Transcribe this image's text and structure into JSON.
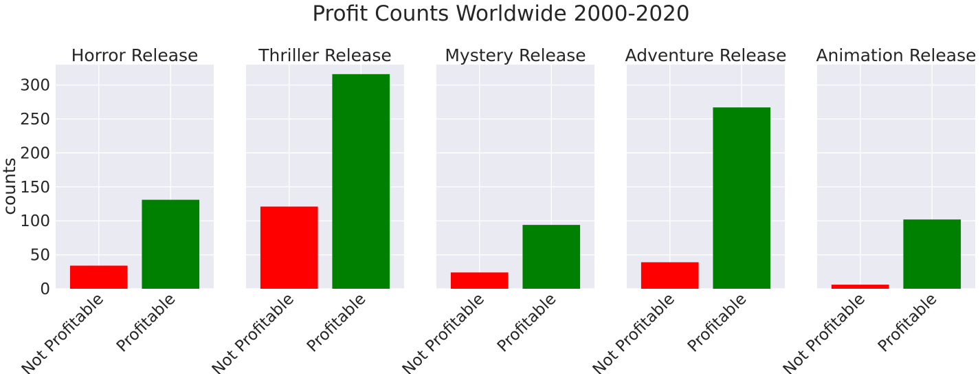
{
  "figure": {
    "suptitle": "Profit Counts Worldwide 2000-2020",
    "ylabel": "counts"
  },
  "colors": {
    "panel_bg": "#eaeaf2",
    "grid": "#ffffff",
    "text": "#262626",
    "not_profitable": "#ff0000",
    "profitable": "#008000"
  },
  "chart_data": [
    {
      "type": "bar",
      "title": "Horror Release",
      "categories": [
        "Not Profitable",
        "Profitable"
      ],
      "values": [
        34,
        131
      ],
      "ylabel": "counts",
      "ylim": [
        0,
        330
      ],
      "yticks": [
        0,
        50,
        100,
        150,
        200,
        250,
        300
      ],
      "grid": true
    },
    {
      "type": "bar",
      "title": "Thriller Release",
      "categories": [
        "Not Profitable",
        "Profitable"
      ],
      "values": [
        121,
        316
      ],
      "ylim": [
        0,
        330
      ],
      "yticks": [
        0,
        50,
        100,
        150,
        200,
        250,
        300
      ],
      "grid": true
    },
    {
      "type": "bar",
      "title": "Mystery Release",
      "categories": [
        "Not Profitable",
        "Profitable"
      ],
      "values": [
        24,
        94
      ],
      "ylim": [
        0,
        330
      ],
      "yticks": [
        0,
        50,
        100,
        150,
        200,
        250,
        300
      ],
      "grid": true
    },
    {
      "type": "bar",
      "title": "Adventure Release",
      "categories": [
        "Not Profitable",
        "Profitable"
      ],
      "values": [
        39,
        267
      ],
      "ylim": [
        0,
        330
      ],
      "yticks": [
        0,
        50,
        100,
        150,
        200,
        250,
        300
      ],
      "grid": true
    },
    {
      "type": "bar",
      "title": "Animation Release",
      "categories": [
        "Not Profitable",
        "Profitable"
      ],
      "values": [
        6,
        102
      ],
      "ylim": [
        0,
        330
      ],
      "yticks": [
        0,
        50,
        100,
        150,
        200,
        250,
        300
      ],
      "grid": true
    }
  ]
}
